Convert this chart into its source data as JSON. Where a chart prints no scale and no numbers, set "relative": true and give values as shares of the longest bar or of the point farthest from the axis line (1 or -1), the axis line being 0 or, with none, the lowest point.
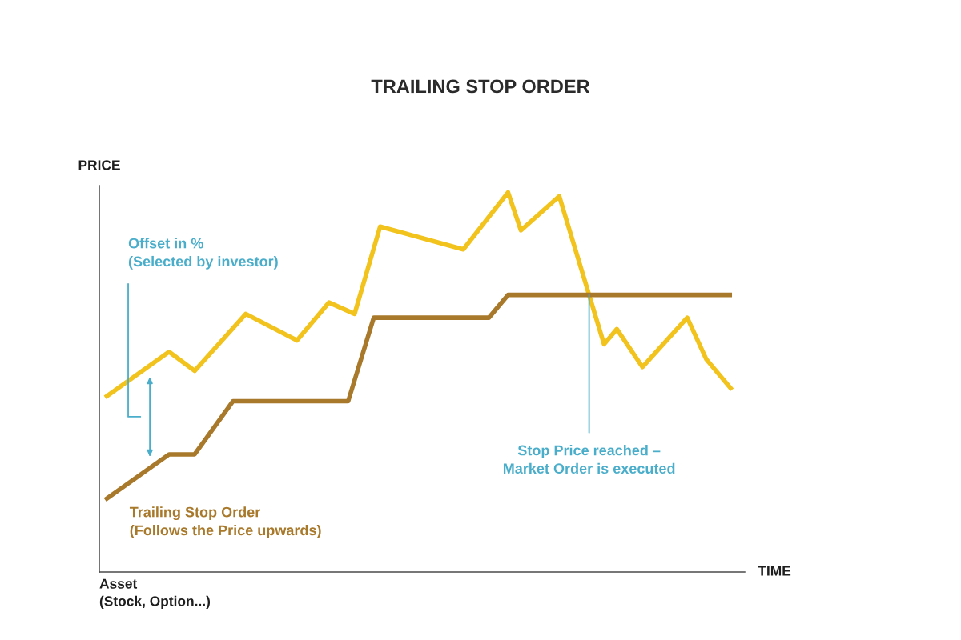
{
  "chart_data": {
    "type": "line",
    "title": "TRAILING STOP ORDER",
    "xlabel": "TIME",
    "ylabel": "PRICE",
    "relative": true,
    "categories": [
      null,
      null,
      null,
      null,
      null,
      null,
      null,
      null,
      null,
      null,
      null,
      null,
      null,
      null,
      null,
      null,
      null,
      null,
      null,
      null,
      null,
      null,
      null,
      null,
      null,
      null,
      null,
      null,
      null,
      null,
      null,
      null,
      null,
      null,
      null,
      null,
      null,
      null,
      null,
      null,
      null,
      null,
      null,
      null,
      null,
      null,
      null,
      null,
      null,
      null,
      null,
      null,
      null,
      null,
      null,
      null,
      null,
      null,
      null,
      null,
      null,
      null,
      null,
      null,
      null,
      null,
      null,
      null,
      null,
      null,
      null,
      null,
      null,
      null,
      null,
      null,
      null,
      null,
      null,
      null,
      null,
      null,
      null,
      null,
      null,
      null,
      null,
      null,
      null,
      null,
      null,
      null,
      null,
      null,
      null,
      null,
      null,
      null,
      null
    ],
    "series": [
      {
        "color": "#f1c31c",
        "values": [
          0.46,
          null,
          null,
          null,
          null,
          null,
          null,
          null,
          null,
          null,
          0.58,
          null,
          null,
          null,
          0.53,
          null,
          null,
          null,
          null,
          null,
          null,
          null,
          0.68,
          null,
          null,
          null,
          null,
          null,
          null,
          null,
          0.61,
          null,
          null,
          null,
          null,
          0.71,
          null,
          null,
          null,
          0.68,
          null,
          null,
          null,
          0.91,
          null,
          null,
          null,
          null,
          null,
          null,
          null,
          null,
          null,
          null,
          null,
          null,
          0.85,
          null,
          null,
          null,
          null,
          null,
          null,
          1,
          null,
          0.9,
          null,
          null,
          null,
          null,
          null,
          0.99,
          null,
          null,
          null,
          null,
          null,
          null,
          0.6,
          null,
          0.64,
          null,
          null,
          null,
          0.54,
          null,
          null,
          null,
          null,
          null,
          null,
          0.67,
          null,
          null,
          0.56,
          null,
          null,
          null,
          0.48
        ]
      },
      {
        "name": "Trailing Stop Order\n(Follows the Price upwards)",
        "color": "#a9792b",
        "values": [
          0.19,
          null,
          null,
          null,
          null,
          null,
          null,
          null,
          null,
          null,
          0.31,
          null,
          null,
          null,
          0.31,
          null,
          null,
          null,
          null,
          null,
          0.45,
          null,
          null,
          null,
          null,
          null,
          null,
          null,
          null,
          null,
          null,
          null,
          null,
          null,
          null,
          null,
          null,
          null,
          0.45,
          null,
          null,
          null,
          0.67,
          null,
          null,
          null,
          null,
          null,
          null,
          null,
          null,
          null,
          null,
          null,
          null,
          null,
          null,
          null,
          null,
          null,
          0.67,
          null,
          null,
          0.73,
          null,
          null,
          null,
          null,
          null,
          null,
          null,
          null,
          null,
          null,
          null,
          null,
          null,
          null,
          null,
          null,
          null,
          null,
          null,
          null,
          null,
          null,
          null,
          null,
          null,
          null,
          null,
          null,
          null,
          null,
          null,
          null,
          null,
          null,
          0.73
        ]
      }
    ],
    "annotations": [
      "Offset in %\n(Selected by investor)",
      "Stop Price reached –\nMarket Order is executed",
      "Asset\n(Stock, Option...)"
    ],
    "legend": false,
    "grid": false,
    "marker": "none",
    "line_style": "solid"
  }
}
